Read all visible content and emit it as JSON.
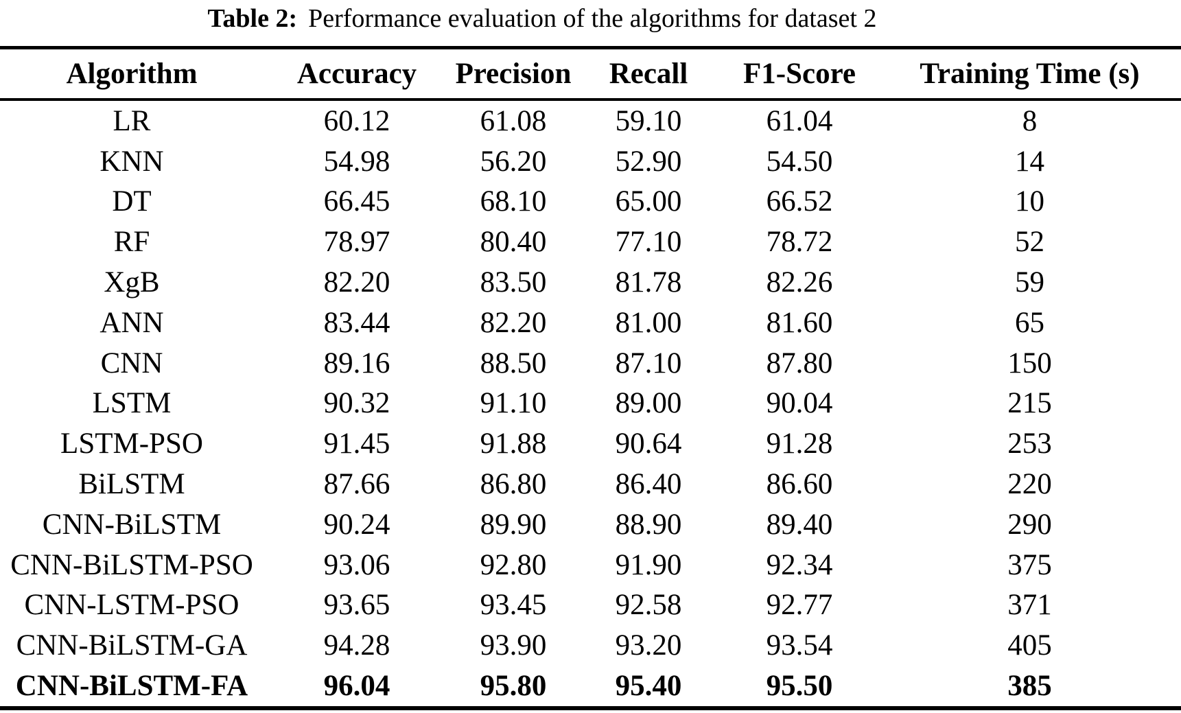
{
  "caption": {
    "label": "Table 2:",
    "text": "Performance evaluation of the algorithms for dataset 2"
  },
  "colors": {
    "text": "#000000",
    "background": "#ffffff",
    "rule": "#000000"
  },
  "table": {
    "columns": [
      "Algorithm",
      "Accuracy",
      "Precision",
      "Recall",
      "F1-Score",
      "Training Time (s)"
    ],
    "rows": [
      {
        "algorithm": "LR",
        "values": [
          "60.12",
          "61.08",
          "59.10",
          "61.04",
          "8"
        ],
        "bold": false
      },
      {
        "algorithm": "KNN",
        "values": [
          "54.98",
          "56.20",
          "52.90",
          "54.50",
          "14"
        ],
        "bold": false
      },
      {
        "algorithm": "DT",
        "values": [
          "66.45",
          "68.10",
          "65.00",
          "66.52",
          "10"
        ],
        "bold": false
      },
      {
        "algorithm": "RF",
        "values": [
          "78.97",
          "80.40",
          "77.10",
          "78.72",
          "52"
        ],
        "bold": false
      },
      {
        "algorithm": "XgB",
        "values": [
          "82.20",
          "83.50",
          "81.78",
          "82.26",
          "59"
        ],
        "bold": false
      },
      {
        "algorithm": "ANN",
        "values": [
          "83.44",
          "82.20",
          "81.00",
          "81.60",
          "65"
        ],
        "bold": false
      },
      {
        "algorithm": "CNN",
        "values": [
          "89.16",
          "88.50",
          "87.10",
          "87.80",
          "150"
        ],
        "bold": false
      },
      {
        "algorithm": "LSTM",
        "values": [
          "90.32",
          "91.10",
          "89.00",
          "90.04",
          "215"
        ],
        "bold": false
      },
      {
        "algorithm": "LSTM-PSO",
        "values": [
          "91.45",
          "91.88",
          "90.64",
          "91.28",
          "253"
        ],
        "bold": false
      },
      {
        "algorithm": "BiLSTM",
        "values": [
          "87.66",
          "86.80",
          "86.40",
          "86.60",
          "220"
        ],
        "bold": false
      },
      {
        "algorithm": "CNN-BiLSTM",
        "values": [
          "90.24",
          "89.90",
          "88.90",
          "89.40",
          "290"
        ],
        "bold": false
      },
      {
        "algorithm": "CNN-BiLSTM-PSO",
        "values": [
          "93.06",
          "92.80",
          "91.90",
          "92.34",
          "375"
        ],
        "bold": false
      },
      {
        "algorithm": "CNN-LSTM-PSO",
        "values": [
          "93.65",
          "93.45",
          "92.58",
          "92.77",
          "371"
        ],
        "bold": false
      },
      {
        "algorithm": "CNN-BiLSTM-GA",
        "values": [
          "94.28",
          "93.90",
          "93.20",
          "93.54",
          "405"
        ],
        "bold": false
      },
      {
        "algorithm": "CNN-BiLSTM-FA",
        "values": [
          "96.04",
          "95.80",
          "95.40",
          "95.50",
          "385"
        ],
        "bold": true
      }
    ]
  }
}
